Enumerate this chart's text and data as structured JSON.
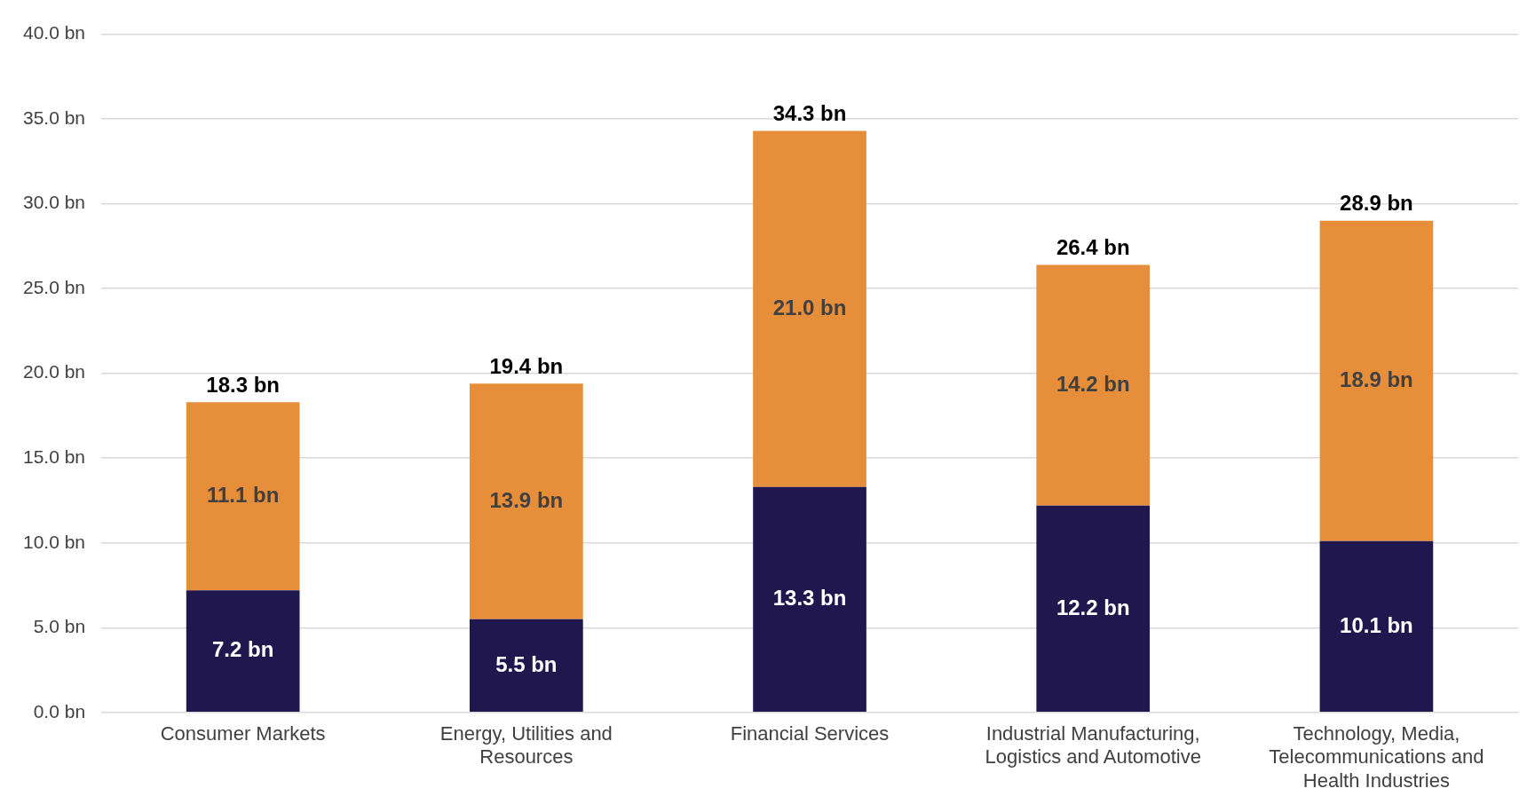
{
  "chart_data": {
    "type": "bar",
    "stacked": true,
    "categories": [
      "Consumer Markets",
      "Energy, Utilities and Resources",
      "Financial Services",
      "Industrial Manufacturing, Logistics and Automotive",
      "Technology, Media, Telecommunications and Health Industries"
    ],
    "series": [
      {
        "color": "#21174f",
        "values": [
          7.2,
          5.5,
          13.3,
          12.2,
          10.1
        ],
        "value_labels": [
          "7.2 bn",
          "5.5 bn",
          "13.3 bn",
          "12.2 bn",
          "10.1 bn"
        ]
      },
      {
        "color": "#e68e3a",
        "values": [
          11.1,
          13.9,
          21.0,
          14.2,
          18.9
        ],
        "value_labels": [
          "11.1 bn",
          "13.9 bn",
          "21.0 bn",
          "14.2 bn",
          "18.9 bn"
        ]
      }
    ],
    "totals": [
      "18.3 bn",
      "19.4 bn",
      "34.3 bn",
      "26.4 bn",
      "28.9 bn"
    ],
    "ylim": [
      0,
      40
    ],
    "yticks": [
      {
        "value": 0,
        "label": "0.0 bn"
      },
      {
        "value": 5,
        "label": "5.0 bn"
      },
      {
        "value": 10,
        "label": "10.0 bn"
      },
      {
        "value": 15,
        "label": "15.0 bn"
      },
      {
        "value": 20,
        "label": "20.0 bn"
      },
      {
        "value": 25,
        "label": "25.0 bn"
      },
      {
        "value": 30,
        "label": "30.0 bn"
      },
      {
        "value": 35,
        "label": "35.0 bn"
      },
      {
        "value": 40,
        "label": "40.0 bn"
      }
    ],
    "grid": "y",
    "legend": false
  }
}
